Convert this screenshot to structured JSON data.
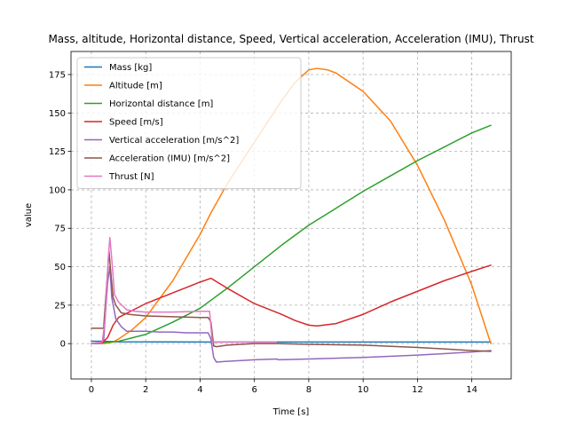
{
  "chart_data": {
    "type": "line",
    "title": "Mass, altitude, Horizontal distance, Speed, Vertical acceleration, Acceleration (IMU), Thrust",
    "xlabel": "Time [s]",
    "ylabel": "value",
    "xlim": [
      -0.75,
      15.45
    ],
    "ylim": [
      -23,
      190
    ],
    "xticks": [
      0,
      2,
      4,
      6,
      8,
      10,
      12,
      14
    ],
    "yticks": [
      0,
      25,
      50,
      75,
      100,
      125,
      150,
      175
    ],
    "grid": true,
    "legend_position": "upper left",
    "series": [
      {
        "name": "Mass [kg]",
        "color": "#1f77b4",
        "points": [
          [
            0,
            1.5
          ],
          [
            0.4,
            1.5
          ],
          [
            0.6,
            1.4
          ],
          [
            1.0,
            1.2
          ],
          [
            4.4,
            1.0
          ],
          [
            6,
            1.0
          ],
          [
            8,
            1.0
          ],
          [
            10,
            1.0
          ],
          [
            12,
            1.0
          ],
          [
            14,
            1.0
          ],
          [
            14.7,
            1.0
          ]
        ]
      },
      {
        "name": "Altitude [m]",
        "color": "#ff7f0e",
        "points": [
          [
            0,
            0
          ],
          [
            0.5,
            0.1
          ],
          [
            0.8,
            1
          ],
          [
            1,
            3
          ],
          [
            1.5,
            9
          ],
          [
            2,
            17
          ],
          [
            3,
            41
          ],
          [
            4,
            71
          ],
          [
            4.4,
            85
          ],
          [
            5,
            104
          ],
          [
            6,
            131
          ],
          [
            7,
            158
          ],
          [
            7.5,
            170
          ],
          [
            8,
            178
          ],
          [
            8.3,
            179
          ],
          [
            8.7,
            178
          ],
          [
            9,
            176
          ],
          [
            10,
            164
          ],
          [
            11,
            145
          ],
          [
            12,
            116
          ],
          [
            13,
            80
          ],
          [
            14,
            38
          ],
          [
            14.7,
            0
          ]
        ]
      },
      {
        "name": "Horizontal distance [m]",
        "color": "#2ca02c",
        "points": [
          [
            0,
            0
          ],
          [
            1,
            1.5
          ],
          [
            2,
            6
          ],
          [
            3,
            14
          ],
          [
            4,
            23
          ],
          [
            5,
            36
          ],
          [
            6,
            50
          ],
          [
            7,
            64
          ],
          [
            8,
            77
          ],
          [
            9,
            88
          ],
          [
            10,
            99
          ],
          [
            11,
            109
          ],
          [
            12,
            119
          ],
          [
            13,
            128
          ],
          [
            14,
            137
          ],
          [
            14.7,
            142
          ]
        ]
      },
      {
        "name": "Speed [m/s]",
        "color": "#d62728",
        "points": [
          [
            0,
            0
          ],
          [
            0.4,
            0.5
          ],
          [
            0.6,
            4
          ],
          [
            0.8,
            12
          ],
          [
            1,
            17
          ],
          [
            2,
            26
          ],
          [
            3,
            33
          ],
          [
            4,
            40
          ],
          [
            4.4,
            42.5
          ],
          [
            5,
            36
          ],
          [
            6,
            26
          ],
          [
            7,
            19
          ],
          [
            7.5,
            15
          ],
          [
            8,
            12
          ],
          [
            8.3,
            11.5
          ],
          [
            9,
            13
          ],
          [
            10,
            19
          ],
          [
            11,
            27
          ],
          [
            12,
            34
          ],
          [
            13,
            41
          ],
          [
            14,
            47
          ],
          [
            14.7,
            51
          ]
        ]
      },
      {
        "name": "Vertical acceleration [m/s^2]",
        "color": "#9467bd",
        "points": [
          [
            0,
            0
          ],
          [
            0.3,
            0
          ],
          [
            0.45,
            2
          ],
          [
            0.6,
            40
          ],
          [
            0.68,
            50
          ],
          [
            0.75,
            30
          ],
          [
            0.9,
            16
          ],
          [
            1.1,
            11
          ],
          [
            1.3,
            8
          ],
          [
            1.6,
            8
          ],
          [
            2,
            8
          ],
          [
            2.5,
            7.5
          ],
          [
            3,
            7.5
          ],
          [
            3.5,
            7
          ],
          [
            4,
            7
          ],
          [
            4.3,
            7
          ],
          [
            4.4,
            3
          ],
          [
            4.5,
            -9
          ],
          [
            4.6,
            -12
          ],
          [
            5,
            -11.5
          ],
          [
            6,
            -10.5
          ],
          [
            6.8,
            -10
          ],
          [
            6.9,
            -10.5
          ],
          [
            8,
            -10
          ],
          [
            10,
            -9
          ],
          [
            12,
            -7.5
          ],
          [
            14,
            -5.5
          ],
          [
            14.7,
            -4.5
          ]
        ]
      },
      {
        "name": "Acceleration (IMU) [m/s^2]",
        "color": "#8c564b",
        "points": [
          [
            0,
            10
          ],
          [
            0.3,
            10
          ],
          [
            0.45,
            10
          ],
          [
            0.55,
            35
          ],
          [
            0.65,
            60
          ],
          [
            0.72,
            45
          ],
          [
            0.8,
            30
          ],
          [
            0.9,
            25
          ],
          [
            1.1,
            20
          ],
          [
            1.4,
            19
          ],
          [
            2,
            18
          ],
          [
            3,
            17.5
          ],
          [
            4,
            17
          ],
          [
            4.3,
            17
          ],
          [
            4.4,
            14
          ],
          [
            4.5,
            -1.5
          ],
          [
            4.6,
            -2
          ],
          [
            5,
            -1
          ],
          [
            6,
            0
          ],
          [
            6.8,
            0
          ],
          [
            8,
            -0.5
          ],
          [
            10,
            -1
          ],
          [
            12,
            -2.5
          ],
          [
            14,
            -4.5
          ],
          [
            14.7,
            -5
          ]
        ]
      },
      {
        "name": "Thrust [N]",
        "color": "#e377c2",
        "points": [
          [
            0,
            0
          ],
          [
            0.4,
            1
          ],
          [
            0.5,
            15
          ],
          [
            0.62,
            55
          ],
          [
            0.68,
            69
          ],
          [
            0.75,
            55
          ],
          [
            0.85,
            32
          ],
          [
            1,
            27
          ],
          [
            1.3,
            22
          ],
          [
            1.6,
            21
          ],
          [
            2,
            20.5
          ],
          [
            3,
            20.5
          ],
          [
            4,
            21
          ],
          [
            4.35,
            21
          ],
          [
            4.45,
            1
          ],
          [
            6,
            1
          ],
          [
            6.8,
            1
          ]
        ]
      }
    ]
  }
}
